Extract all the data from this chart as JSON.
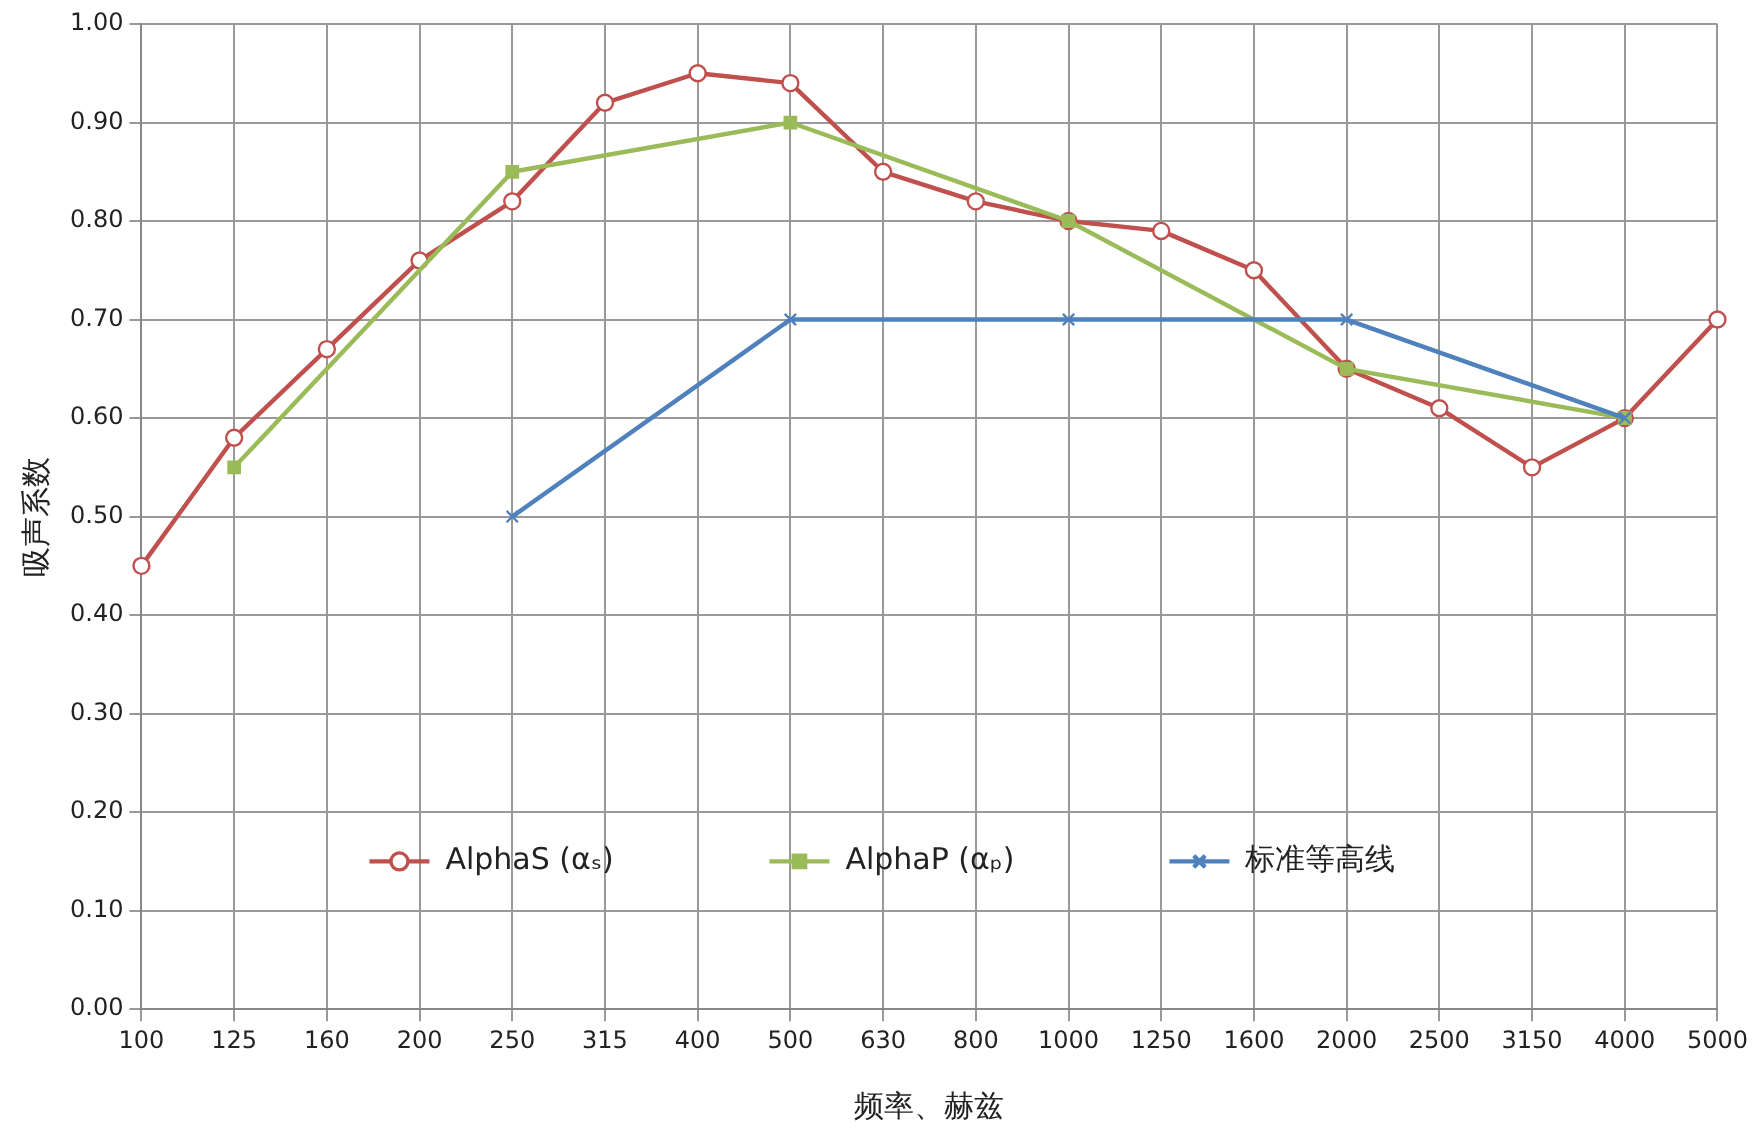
{
  "chart_data": {
    "type": "line",
    "xlabel": "频率、赫兹",
    "ylabel": "吸声系数",
    "categories": [
      "100",
      "125",
      "160",
      "200",
      "250",
      "315",
      "400",
      "500",
      "630",
      "800",
      "1000",
      "1250",
      "1600",
      "2000",
      "2500",
      "3150",
      "4000",
      "5000"
    ],
    "series": [
      {
        "name": "AlphaS (αₛ)",
        "color": "#c0504d",
        "marker": "circle",
        "values": [
          0.45,
          0.58,
          0.67,
          0.76,
          0.82,
          0.92,
          0.95,
          0.94,
          0.85,
          0.82,
          0.8,
          0.79,
          0.75,
          0.65,
          0.61,
          0.55,
          0.6,
          0.7
        ]
      },
      {
        "name": "AlphaP (αₚ)",
        "color": "#9bbb59",
        "marker": "square",
        "values": [
          null,
          0.55,
          null,
          null,
          0.85,
          null,
          null,
          0.9,
          null,
          null,
          0.8,
          null,
          null,
          0.65,
          null,
          null,
          0.6,
          null
        ]
      },
      {
        "name": "标准等高线",
        "color": "#4f81bd",
        "marker": "cross",
        "values": [
          null,
          null,
          null,
          null,
          0.5,
          null,
          null,
          0.7,
          null,
          null,
          0.7,
          null,
          null,
          0.7,
          null,
          null,
          0.6,
          null
        ]
      }
    ],
    "ylim": [
      0,
      1
    ],
    "yticks": [
      {
        "value": 0,
        "label": "0.00"
      },
      {
        "value": 0.1,
        "label": "0.10"
      },
      {
        "value": 0.2,
        "label": "0.20"
      },
      {
        "value": 0.3,
        "label": "0.30"
      },
      {
        "value": 0.4,
        "label": "0.40"
      },
      {
        "value": 0.5,
        "label": "0.50"
      },
      {
        "value": 0.6,
        "label": "0.60"
      },
      {
        "value": 0.7,
        "label": "0.70"
      },
      {
        "value": 0.8,
        "label": "0.80"
      },
      {
        "value": 0.9,
        "label": "0.90"
      },
      {
        "value": 1,
        "label": "1.00"
      }
    ],
    "grid": true,
    "legend": "bottom",
    "line_style": "solid"
  }
}
